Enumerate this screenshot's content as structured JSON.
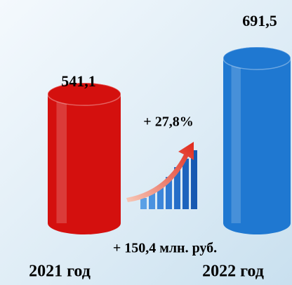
{
  "chart_data": {
    "type": "bar",
    "categories": [
      "2021 год",
      "2022 год"
    ],
    "values": [
      541.1,
      691.5
    ],
    "value_labels": [
      "541,1",
      "691,5"
    ],
    "colors": [
      "#d4100e",
      "#1f78d1"
    ],
    "annotations": [
      "+ 27,8%",
      "+ 150,4 млн. руб."
    ]
  }
}
